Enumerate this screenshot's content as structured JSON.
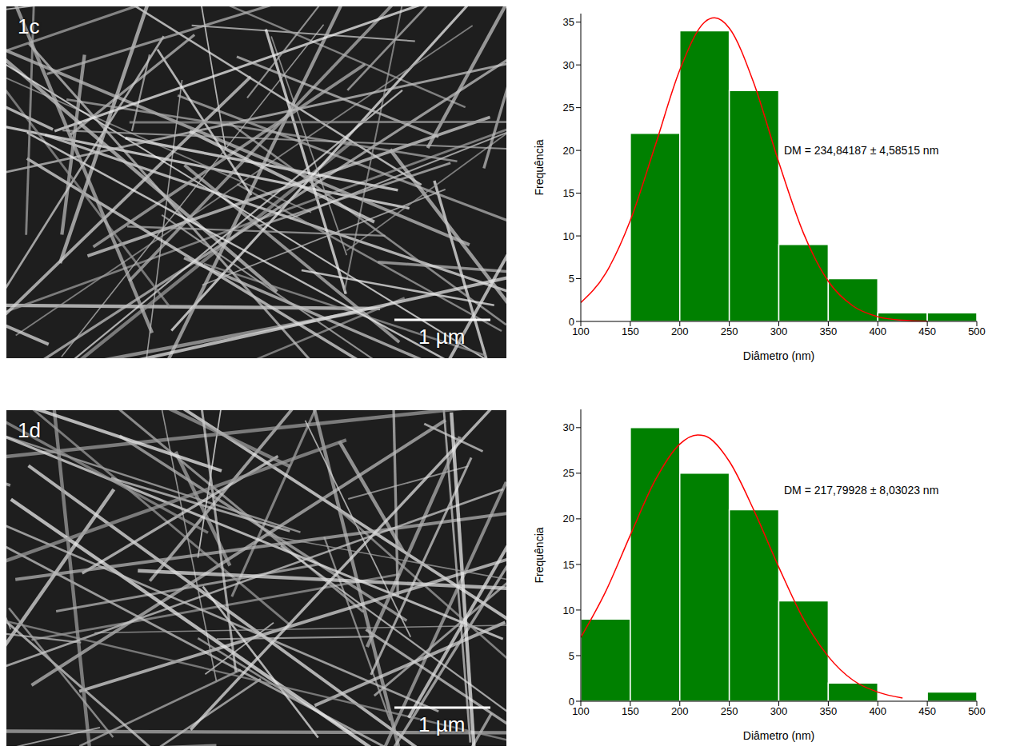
{
  "chart_data": [
    {
      "type": "histogram",
      "x_label": "Diâmetro (nm)",
      "y_label": "Frequência",
      "annotation": "DM = 234,84187 ± 4,58515 nm",
      "bins": [
        150,
        200,
        250,
        300,
        350,
        400,
        450,
        500
      ],
      "values": [
        22,
        34,
        27,
        9,
        5,
        1,
        1
      ],
      "color": "#008000",
      "xlim": [
        100,
        500
      ],
      "xticks": [
        100,
        150,
        200,
        250,
        300,
        350,
        400,
        450,
        500
      ],
      "ylim": [
        0,
        36
      ],
      "yticks": [
        0,
        5,
        10,
        15,
        20,
        25,
        30,
        35
      ],
      "fit": {
        "type": "line",
        "color": "#ff0000",
        "x": [
          100,
          125,
          150,
          175,
          200,
          225,
          235,
          250,
          275,
          300,
          325,
          350,
          375,
          400,
          425,
          450
        ],
        "values": [
          2.2,
          5.6,
          11.8,
          20.5,
          29.4,
          35.0,
          35.5,
          34.3,
          27.8,
          18.6,
          10.3,
          4.7,
          1.8,
          0.55,
          0.13,
          0.02
        ]
      }
    },
    {
      "type": "histogram",
      "x_label": "Diâmetro (nm)",
      "y_label": "Frequência",
      "annotation": "DM = 217,79928 ± 8,03023 nm",
      "bins": [
        100,
        150,
        200,
        250,
        300,
        350,
        400,
        450,
        500
      ],
      "values": [
        9,
        30,
        25,
        21,
        11,
        2,
        0,
        1
      ],
      "color": "#008000",
      "xlim": [
        100,
        500
      ],
      "xticks": [
        100,
        150,
        200,
        250,
        300,
        350,
        400,
        450,
        500
      ],
      "ylim": [
        0,
        32
      ],
      "yticks": [
        0,
        5,
        10,
        15,
        20,
        25,
        30
      ],
      "fit": {
        "type": "line",
        "color": "#ff0000",
        "x": [
          100,
          125,
          150,
          175,
          200,
          218,
          225,
          250,
          275,
          300,
          325,
          350,
          375,
          400,
          425
        ],
        "values": [
          7.0,
          12.0,
          18.2,
          24.2,
          28.2,
          29.2,
          29.1,
          26.3,
          20.9,
          14.7,
          9.0,
          4.9,
          2.3,
          1.0,
          0.36
        ]
      }
    }
  ],
  "images": [
    {
      "label": "1c",
      "scale_bar": "1 µm"
    },
    {
      "label": "1d",
      "scale_bar": "1 µm"
    }
  ]
}
